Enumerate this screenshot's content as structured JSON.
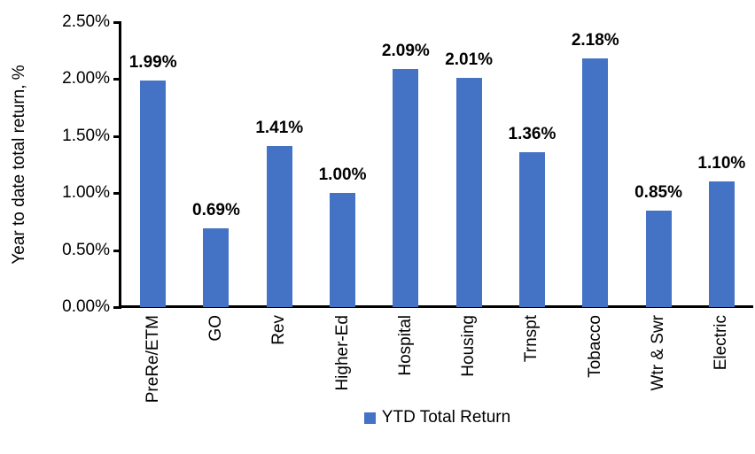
{
  "chart_data": {
    "type": "bar",
    "title": "",
    "xlabel": "",
    "ylabel": "Year to date total return, %",
    "categories": [
      "PreRe/ETM",
      "GO",
      "Rev",
      "Higher-Ed",
      "Hospital",
      "Housing",
      "Trnspt",
      "Tobacco",
      "Wtr & Swr",
      "Electric"
    ],
    "series": [
      {
        "name": "YTD Total Return",
        "values": [
          1.99,
          0.69,
          1.41,
          1.0,
          2.09,
          2.01,
          1.36,
          2.18,
          0.85,
          1.1
        ],
        "value_labels": [
          "1.99%",
          "0.69%",
          "1.41%",
          "1.00%",
          "2.09%",
          "2.01%",
          "1.36%",
          "2.18%",
          "0.85%",
          "1.10%"
        ]
      }
    ],
    "ylim": [
      0,
      2.5
    ],
    "yticks": [
      {
        "value": 0.0,
        "label": "0.00%"
      },
      {
        "value": 0.5,
        "label": "0.50%"
      },
      {
        "value": 1.0,
        "label": "1.00%"
      },
      {
        "value": 1.5,
        "label": "1.50%"
      },
      {
        "value": 2.0,
        "label": "2.00%"
      },
      {
        "value": 2.5,
        "label": "2.50%"
      }
    ],
    "grid": false,
    "bar_color": "#4472C4",
    "axis_color": "#000000",
    "text_color": "#000000",
    "legend": {
      "position": "bottom",
      "label": "YTD Total Return",
      "swatch_color": "#4472C4"
    }
  }
}
